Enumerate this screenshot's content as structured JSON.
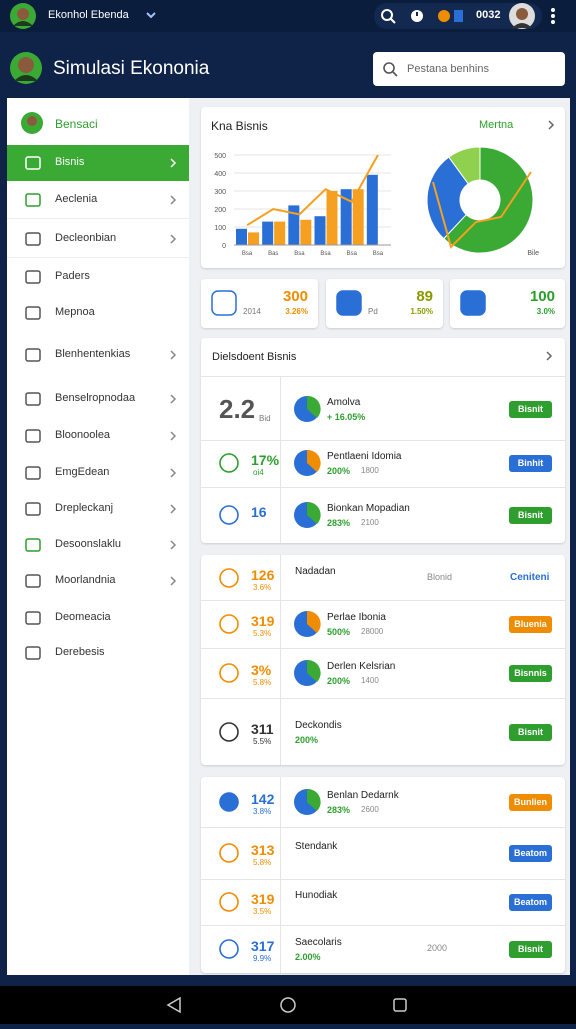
{
  "status_bar": {
    "account": "Ekonhol Ebenda",
    "time": "0032"
  },
  "header": {
    "title": "Simulasi Ekononia",
    "search_placeholder": "Pestana benhins"
  },
  "sidebar": {
    "profile": "Bensaci",
    "items": [
      "Bisnis",
      "Aeclenia",
      "Decleonbian",
      "Paders",
      "Mepnoa",
      "Blenhentenkias",
      "Benselropnodaa",
      "Bloonoolea",
      "EmgEdean",
      "Drepleckanj",
      "Desoonslaklu",
      "Moorlandnia",
      "Deomeacia",
      "Derebesis"
    ]
  },
  "overview": {
    "title": "Kna Bisnis",
    "link": "Mertna",
    "bar_chart": {
      "categories": [
        "Bsa",
        "Bas",
        "Bsa",
        "Bsa",
        "Bsa",
        "Bsa"
      ],
      "series": [
        {
          "color": "#2a6fd6",
          "values": [
            90,
            130,
            220,
            160,
            310,
            390
          ]
        },
        {
          "color": "#f5a020",
          "values": [
            70,
            130,
            140,
            300,
            310,
            null
          ]
        }
      ],
      "line": {
        "color": "#f5a020",
        "values": [
          110,
          200,
          170,
          310,
          240,
          500
        ]
      },
      "ylim": [
        0,
        500
      ],
      "yticks": [
        0,
        100,
        200,
        300,
        400,
        500
      ]
    },
    "donut": {
      "values": [
        62,
        28,
        10
      ],
      "colors": [
        "#3aaa35",
        "#2a6fd6",
        "#8fd14f"
      ],
      "label": "Bile"
    }
  },
  "stats": [
    {
      "value": 300,
      "change": "3.26%",
      "note": "2014",
      "color": "#f08c00"
    },
    {
      "value": 89,
      "change": "1.50%",
      "note": "Pd",
      "color": "#8a9a00"
    },
    {
      "value": 100,
      "change": "3.0%",
      "color": "#2a9d2a"
    }
  ],
  "cards": [
    {
      "title": "Dielsdoent Bisnis",
      "rows": [
        {
          "value": "2.2",
          "sub": "Bid",
          "value_color": "#555",
          "title": "Amolva",
          "change": "+ 16.05%",
          "action": {
            "label": "Bisnit",
            "color": "#2e9e2e"
          }
        },
        {
          "value": "17%",
          "sub": "oi4",
          "value_color": "#2e9e2e",
          "title": "Pentlaeni Idomia",
          "change": "200%",
          "amount": "1800",
          "action": {
            "label": "Binhit",
            "color": "#2a6fd6"
          }
        },
        {
          "value": "16",
          "sub": "",
          "value_color": "#2a6fd6",
          "title": "Bionkan Mopadian",
          "change": "283%",
          "amount": "2100",
          "action": {
            "label": "Bisnit",
            "color": "#2e9e2e"
          }
        }
      ]
    },
    {
      "rows": [
        {
          "value": "126",
          "sub": "3.6%",
          "value_color": "#f08c00",
          "title": "Nadadan",
          "amount": "Blonid",
          "action": {
            "label": "Ceniteni",
            "color": "#2a6fd6",
            "link": true
          }
        },
        {
          "value": "319",
          "sub": "5.3%",
          "value_color": "#f08c00",
          "title": "Perlae Ibonia",
          "change": "500%",
          "amount": "28000",
          "action": {
            "label": "Bluenia",
            "color": "#f08c00"
          }
        },
        {
          "value": "3%",
          "sub": "5.8%",
          "value_color": "#f08c00",
          "title": "Derlen Kelsrian",
          "change": "200%",
          "amount": "1400",
          "action": {
            "label": "Bisnnis",
            "color": "#2e9e2e"
          }
        },
        {
          "value": "311",
          "sub": "5.5%",
          "value_color": "#333",
          "title": "Deckondis",
          "change": "200%",
          "action": {
            "label": "Bisnit",
            "color": "#2e9e2e"
          }
        }
      ]
    },
    {
      "rows": [
        {
          "value": "142",
          "sub": "3.8%",
          "value_color": "#2a6fd6",
          "title": "Benlan Dedarnk",
          "change": "283%",
          "amount": "2600",
          "action": {
            "label": "Bunlien",
            "color": "#f08c00"
          }
        },
        {
          "value": "313",
          "sub": "5.8%",
          "value_color": "#f08c00",
          "title": "Stendank",
          "action": {
            "label": "Beatom",
            "color": "#2a6fd6"
          }
        },
        {
          "value": "319",
          "sub": "3.5%",
          "value_color": "#f08c00",
          "title": "Hunodiak",
          "action": {
            "label": "Beatom",
            "color": "#2a6fd6"
          }
        },
        {
          "value": "317",
          "sub": "9.9%",
          "value_color": "#2a6fd6",
          "title": "Saecolaris",
          "change": "2.00%",
          "amount": "2000",
          "action": {
            "label": "Bisnit",
            "color": "#2e9e2e"
          }
        }
      ]
    }
  ]
}
